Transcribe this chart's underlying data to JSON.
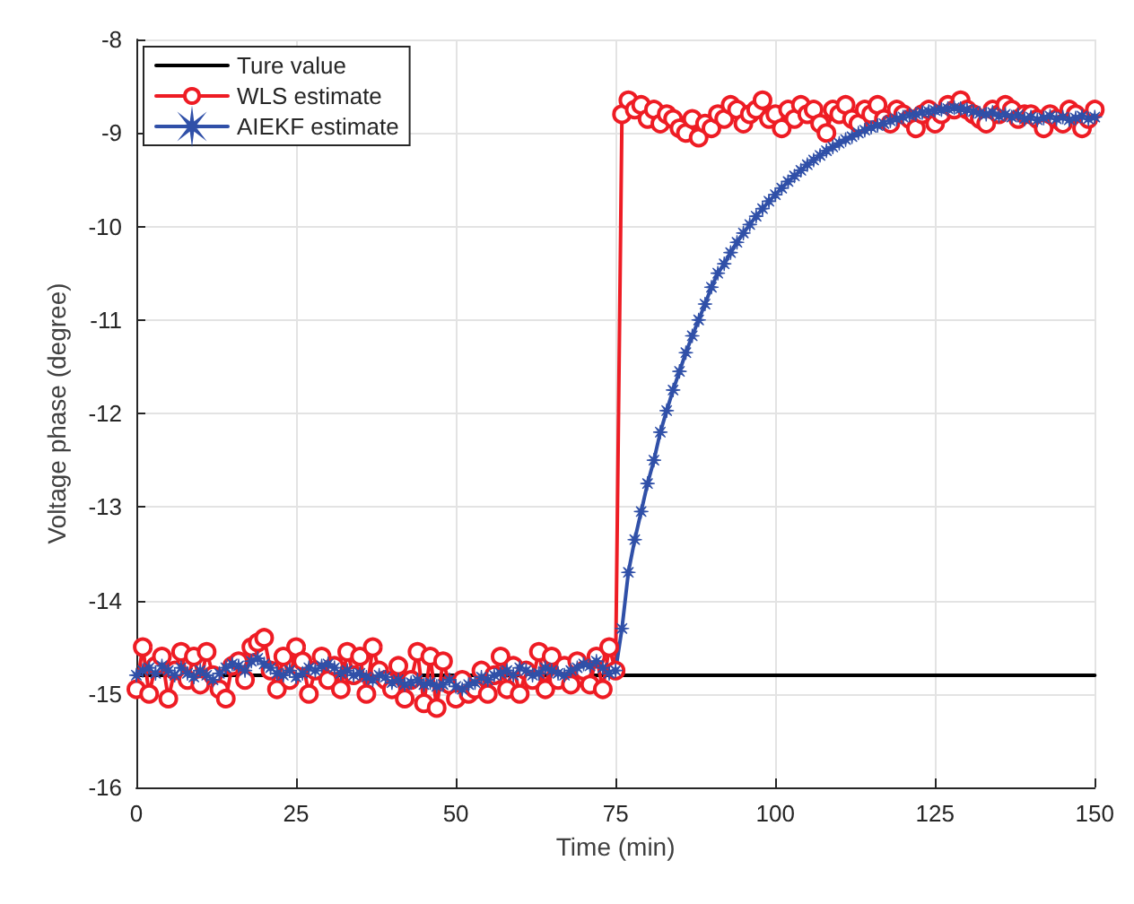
{
  "chart_data": {
    "type": "line",
    "xlabel": "Time (min)",
    "ylabel": "Voltage phase (degree)",
    "x": [
      0,
      1,
      2,
      3,
      4,
      5,
      6,
      7,
      8,
      9,
      10,
      11,
      12,
      13,
      14,
      15,
      16,
      17,
      18,
      19,
      20,
      21,
      22,
      23,
      24,
      25,
      26,
      27,
      28,
      29,
      30,
      31,
      32,
      33,
      34,
      35,
      36,
      37,
      38,
      39,
      40,
      41,
      42,
      43,
      44,
      45,
      46,
      47,
      48,
      49,
      50,
      51,
      52,
      53,
      54,
      55,
      56,
      57,
      58,
      59,
      60,
      61,
      62,
      63,
      64,
      65,
      66,
      67,
      68,
      69,
      70,
      71,
      72,
      73,
      74,
      75,
      76,
      77,
      78,
      79,
      80,
      81,
      82,
      83,
      84,
      85,
      86,
      87,
      88,
      89,
      90,
      91,
      92,
      93,
      94,
      95,
      96,
      97,
      98,
      99,
      100,
      101,
      102,
      103,
      104,
      105,
      106,
      107,
      108,
      109,
      110,
      111,
      112,
      113,
      114,
      115,
      116,
      117,
      118,
      119,
      120,
      121,
      122,
      123,
      124,
      125,
      126,
      127,
      128,
      129,
      130,
      131,
      132,
      133,
      134,
      135,
      136,
      137,
      138,
      139,
      140,
      141,
      142,
      143,
      144,
      145,
      146,
      147,
      148,
      149,
      150
    ],
    "xlim": [
      0,
      150
    ],
    "xticks": [
      0,
      25,
      50,
      75,
      100,
      125,
      150
    ],
    "ylim": [
      -16,
      -8
    ],
    "yticks": [
      -16,
      -15,
      -14,
      -13,
      -12,
      -11,
      -10,
      -9,
      -8
    ],
    "grid": true,
    "legend": "top left",
    "line_style": "solid",
    "series": [
      {
        "name": "Ture value",
        "color": "#000000",
        "marker": "none",
        "x": [
          0,
          150
        ],
        "values": [
          -14.8,
          -14.8
        ]
      },
      {
        "name": "WLS estimate",
        "color": "#ee1c24",
        "marker": "circle",
        "values": [
          -14.95,
          -14.5,
          -15.0,
          -14.7,
          -14.6,
          -15.05,
          -14.75,
          -14.55,
          -14.85,
          -14.6,
          -14.9,
          -14.55,
          -14.8,
          -14.95,
          -15.05,
          -14.7,
          -14.65,
          -14.85,
          -14.5,
          -14.45,
          -14.4,
          -14.75,
          -14.95,
          -14.6,
          -14.85,
          -14.5,
          -14.65,
          -15.0,
          -14.75,
          -14.6,
          -14.85,
          -14.7,
          -14.95,
          -14.55,
          -14.8,
          -14.6,
          -15.0,
          -14.5,
          -14.75,
          -14.85,
          -14.95,
          -14.7,
          -15.05,
          -14.85,
          -14.55,
          -15.1,
          -14.6,
          -15.15,
          -14.65,
          -14.9,
          -15.05,
          -14.85,
          -15.0,
          -14.95,
          -14.75,
          -15.0,
          -14.8,
          -14.6,
          -14.95,
          -14.7,
          -15.0,
          -14.75,
          -14.85,
          -14.55,
          -14.95,
          -14.6,
          -14.85,
          -14.7,
          -14.9,
          -14.65,
          -14.75,
          -14.9,
          -14.6,
          -14.95,
          -14.5,
          -14.75,
          -8.8,
          -8.65,
          -8.75,
          -8.7,
          -8.85,
          -8.75,
          -8.9,
          -8.8,
          -8.85,
          -8.95,
          -9.0,
          -8.85,
          -9.05,
          -8.9,
          -8.95,
          -8.8,
          -8.85,
          -8.7,
          -8.75,
          -8.9,
          -8.8,
          -8.75,
          -8.65,
          -8.85,
          -8.8,
          -8.95,
          -8.75,
          -8.85,
          -8.7,
          -8.8,
          -8.75,
          -8.9,
          -9.0,
          -8.75,
          -8.8,
          -8.7,
          -8.85,
          -8.9,
          -8.75,
          -8.8,
          -8.7,
          -8.85,
          -8.9,
          -8.75,
          -8.8,
          -8.85,
          -8.95,
          -8.8,
          -8.75,
          -8.9,
          -8.8,
          -8.7,
          -8.75,
          -8.65,
          -8.75,
          -8.8,
          -8.85,
          -8.9,
          -8.75,
          -8.8,
          -8.7,
          -8.75,
          -8.85,
          -8.8,
          -8.8,
          -8.85,
          -8.95,
          -8.8,
          -8.85,
          -8.9,
          -8.75,
          -8.8,
          -8.95,
          -8.85,
          -8.75
        ]
      },
      {
        "name": "AIEKF estimate",
        "color": "#3050a8",
        "marker": "star",
        "values": [
          -14.8,
          -14.75,
          -14.72,
          -14.78,
          -14.7,
          -14.75,
          -14.8,
          -14.72,
          -14.78,
          -14.82,
          -14.75,
          -14.8,
          -14.85,
          -14.78,
          -14.72,
          -14.68,
          -14.7,
          -14.75,
          -14.65,
          -14.62,
          -14.68,
          -14.72,
          -14.78,
          -14.8,
          -14.75,
          -14.82,
          -14.78,
          -14.72,
          -14.75,
          -14.7,
          -14.68,
          -14.72,
          -14.78,
          -14.75,
          -14.8,
          -14.78,
          -14.82,
          -14.85,
          -14.8,
          -14.82,
          -14.88,
          -14.85,
          -14.9,
          -14.88,
          -14.85,
          -14.9,
          -14.88,
          -14.92,
          -14.9,
          -14.85,
          -14.92,
          -14.95,
          -14.9,
          -14.88,
          -14.82,
          -14.85,
          -14.8,
          -14.78,
          -14.75,
          -14.8,
          -14.72,
          -14.75,
          -14.8,
          -14.78,
          -14.72,
          -14.75,
          -14.78,
          -14.8,
          -14.75,
          -14.72,
          -14.68,
          -14.7,
          -14.65,
          -14.72,
          -14.78,
          -14.75,
          -14.3,
          -13.7,
          -13.35,
          -13.05,
          -12.75,
          -12.5,
          -12.2,
          -11.97,
          -11.75,
          -11.55,
          -11.35,
          -11.17,
          -11.0,
          -10.83,
          -10.65,
          -10.5,
          -10.4,
          -10.28,
          -10.17,
          -10.07,
          -9.98,
          -9.89,
          -9.81,
          -9.73,
          -9.66,
          -9.59,
          -9.52,
          -9.46,
          -9.4,
          -9.34,
          -9.29,
          -9.24,
          -9.19,
          -9.15,
          -9.11,
          -9.07,
          -9.04,
          -9.0,
          -8.97,
          -8.94,
          -8.92,
          -8.9,
          -8.87,
          -8.85,
          -8.83,
          -8.81,
          -8.8,
          -8.78,
          -8.77,
          -8.76,
          -8.75,
          -8.74,
          -8.73,
          -8.74,
          -8.75,
          -8.77,
          -8.79,
          -8.8,
          -8.78,
          -8.82,
          -8.8,
          -8.83,
          -8.81,
          -8.85,
          -8.83,
          -8.86,
          -8.84,
          -8.82,
          -8.85,
          -8.83,
          -8.86,
          -8.84,
          -8.82,
          -8.85,
          -8.83
        ]
      }
    ]
  }
}
